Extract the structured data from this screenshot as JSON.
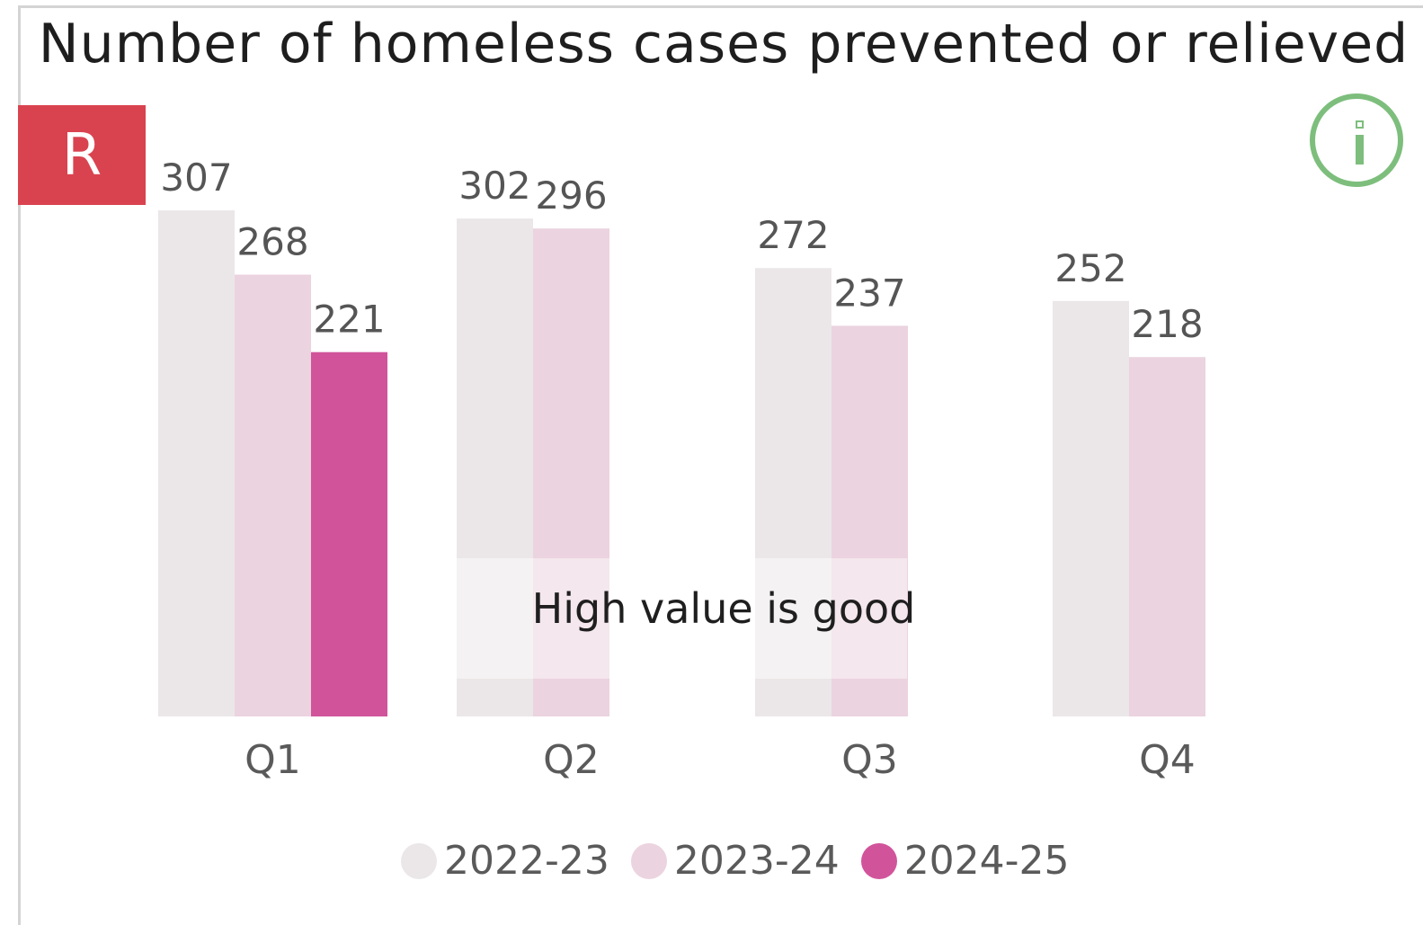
{
  "rag_status": "R",
  "info_icon": "info-icon",
  "note": "High value is good",
  "colors": {
    "2022-23": "#ebe7e8",
    "2023-24": "#ebd3df",
    "2024-25": "#d1549b",
    "rag": "#d9434f",
    "info": "#7dbe7d"
  },
  "chart_data": {
    "type": "bar",
    "title": "Number of homeless cases prevented or relieved",
    "categories": [
      "Q1",
      "Q2",
      "Q3",
      "Q4"
    ],
    "series": [
      {
        "name": "2022-23",
        "values": [
          307,
          302,
          272,
          252
        ]
      },
      {
        "name": "2023-24",
        "values": [
          268,
          296,
          237,
          218
        ]
      },
      {
        "name": "2024-25",
        "values": [
          221,
          null,
          null,
          null
        ]
      }
    ],
    "ylim": [
      0,
      307
    ],
    "grid": false,
    "legend": "bottom"
  }
}
